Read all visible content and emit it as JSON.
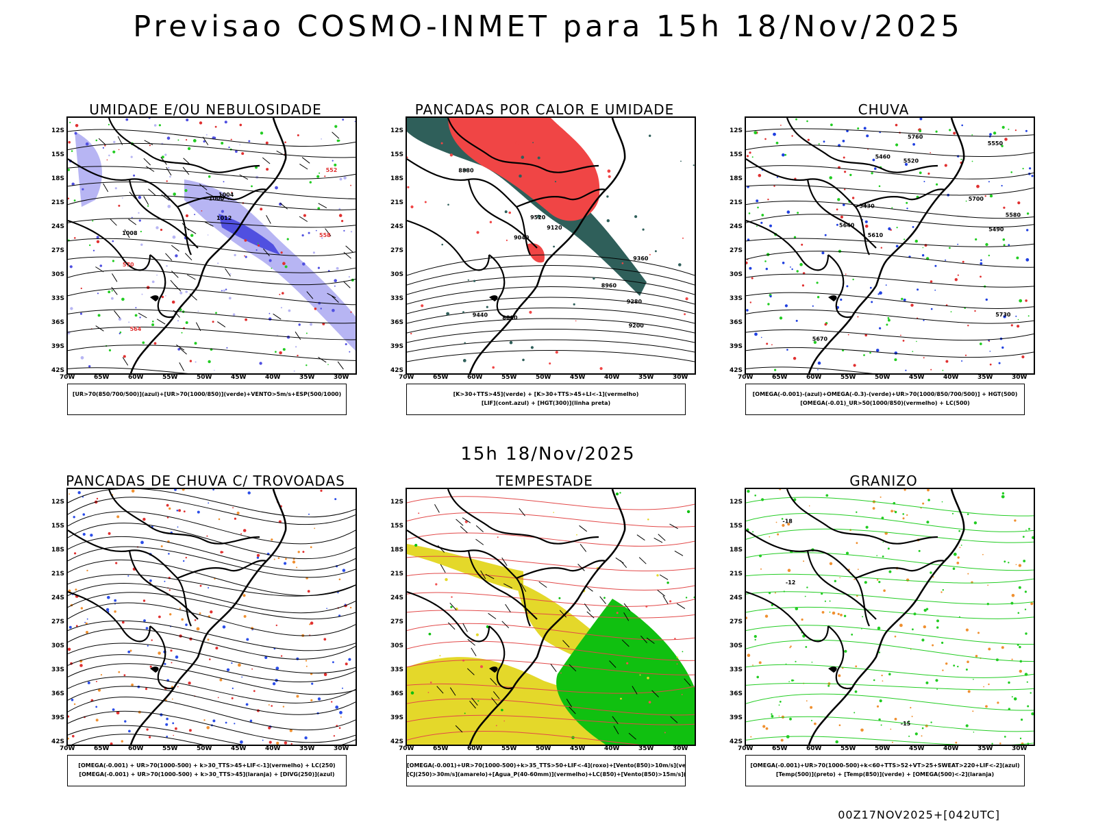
{
  "header": {
    "title": "Previsao COSMO-INMET  para 15h 18/Nov/2025"
  },
  "subtitle": "15h 18/Nov/2025",
  "footer": "00Z17NOV2025+[042UTC]",
  "axes": {
    "lat_labels": [
      "12S",
      "15S",
      "18S",
      "21S",
      "24S",
      "27S",
      "30S",
      "33S",
      "36S",
      "39S",
      "42S"
    ],
    "lon_labels": [
      "70W",
      "65W",
      "60W",
      "55W",
      "50W",
      "45W",
      "40W",
      "35W",
      "30W"
    ]
  },
  "panels": [
    {
      "title": "UMIDADE E/OU NEBULOSIDADE",
      "legend": [
        "[UR>70(850/700/500)](azul)+[UR>70(1000/850)](verde)+VENTO>5m/s+ESP(500/1000)"
      ],
      "contour_labels": [
        "1008",
        "1012",
        "1004",
        "1000",
        "564",
        "570",
        "558",
        "552"
      ],
      "colors": {
        "fill": "#b7b5f3",
        "fill2": "#5050e0",
        "green": "#22cc22",
        "red": "#e03030"
      }
    },
    {
      "title": "PANCADAS POR CALOR E UMIDADE",
      "legend": [
        "[K>30+TTS>45](verde)  +  [K>30+TTS>45+LI<-1](vermelho)",
        "[LIF](cont.azul)  +  [HGT(300)](linha preta)"
      ],
      "contour_labels": [
        "9520",
        "9440",
        "9360",
        "9280",
        "9200",
        "9120",
        "9040",
        "8960",
        "8880",
        "8800"
      ],
      "colors": {
        "fill": "#2f5f5a",
        "red": "#f04545"
      }
    },
    {
      "title": "CHUVA",
      "legend": [
        "[OMEGA(-0.001)-(azul)+OMEGA(-0.3)-(verde)+UR>70(1000/850/700/500)]  +  HGT(500)",
        "[OMEGA(-0.01)_UR>50(1000/850)(vermelho)  +  LC(500)"
      ],
      "contour_labels": [
        "5760",
        "5700",
        "5640",
        "5610",
        "5580",
        "5550",
        "5520",
        "5490",
        "5460",
        "5430",
        "5730",
        "5670"
      ],
      "colors": {
        "red": "#e03030",
        "green": "#22cc22",
        "blue": "#2040e0"
      }
    },
    {
      "title": "PANCADAS DE CHUVA C/ TROVOADAS",
      "legend": [
        "[OMEGA(-0.001)  +  UR>70(1000-500)  +  k>30_TTS>45+LIF<-1](vermelho)  +  LC(250)",
        "[OMEGA(-0.001)  +  UR>70(1000-500)  +  k>30_TTS>45](laranja)  +  [DIVG(250)](azul)"
      ],
      "contour_labels": [],
      "colors": {
        "blue": "#2b4de8",
        "orange": "#f09030",
        "red": "#e03030"
      }
    },
    {
      "title": "TEMPESTADE",
      "legend": [
        "[OMEGA(-0.001)+UR>70(1000-500)+k>35_TTS>50+LIF<-4](roxo)+[Vento(850)>10m/s](verde)",
        "[CJ(250)>30m/s](amarelo)+[Agua_P(40-60mm)](vermelho)+LC(850)+[Vento(850)>15m/s](vetor)"
      ],
      "contour_labels": [],
      "colors": {
        "yellow": "#e4d82a",
        "green": "#10c010",
        "red": "#f05050"
      }
    },
    {
      "title": "GRANIZO",
      "legend": [
        "[OMEGA(-0.001)+UR>70(1000-500)+k<60+TTS>52+VT>25+SWEAT>220+LIF<-2](azul)",
        "[Temp(500)](preto)  +  [Temp(850)](verde)  +  [OMEGA(500)<-2](laranja)"
      ],
      "contour_labels": [
        "-12",
        "-15",
        "-18"
      ],
      "colors": {
        "green": "#22cc22",
        "orange": "#f09030"
      }
    }
  ]
}
